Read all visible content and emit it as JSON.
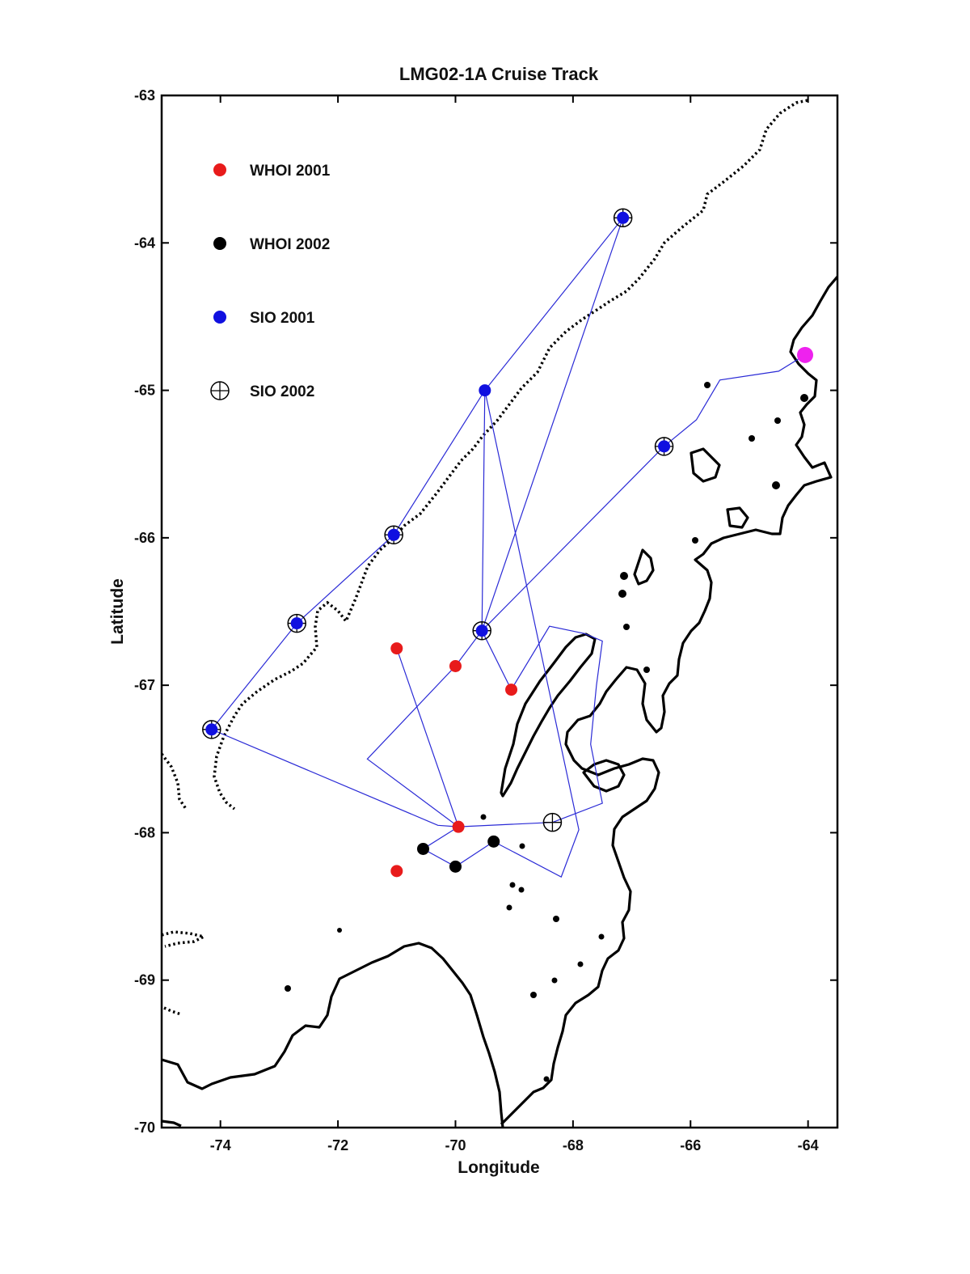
{
  "chart_data": {
    "type": "map",
    "title": "LMG02-1A Cruise Track",
    "xlabel": "Longitude",
    "ylabel": "Latitude",
    "xlim": [
      -75,
      -63.5
    ],
    "ylim": [
      -70,
      -63
    ],
    "xticks": [
      -74,
      -72,
      -70,
      -68,
      -66,
      -64
    ],
    "yticks": [
      -63,
      -64,
      -65,
      -66,
      -67,
      -68,
      -69,
      -70
    ],
    "legend": {
      "placement": "top-left",
      "entries": [
        {
          "label": "WHOI 2001",
          "marker": "dot",
          "color": "#e81b1b"
        },
        {
          "label": "WHOI 2002",
          "marker": "dot",
          "color": "#000000"
        },
        {
          "label": "SIO 2001",
          "marker": "dot",
          "color": "#1010e0"
        },
        {
          "label": "SIO 2002",
          "marker": "crosshair-circle",
          "color": "#000000"
        }
      ]
    },
    "stations": {
      "whoi_2001": [
        [
          -71.0,
          -66.75
        ],
        [
          -70.0,
          -66.87
        ],
        [
          -69.05,
          -67.03
        ],
        [
          -69.95,
          -67.96
        ],
        [
          -71.0,
          -68.26
        ]
      ],
      "whoi_2002": [
        [
          -70.55,
          -68.11
        ],
        [
          -70.0,
          -68.23
        ],
        [
          -69.35,
          -68.06
        ]
      ],
      "sio_2001": [
        [
          -67.15,
          -63.83
        ],
        [
          -69.5,
          -65.0
        ],
        [
          -71.05,
          -65.98
        ],
        [
          -72.7,
          -66.58
        ],
        [
          -74.15,
          -67.3
        ],
        [
          -66.45,
          -65.38
        ],
        [
          -69.55,
          -66.63
        ]
      ],
      "sio_2002": [
        [
          -67.15,
          -63.83
        ],
        [
          -71.05,
          -65.98
        ],
        [
          -72.7,
          -66.58
        ],
        [
          -74.15,
          -67.3
        ],
        [
          -66.45,
          -65.38
        ],
        [
          -69.55,
          -66.63
        ],
        [
          -68.35,
          -67.93
        ]
      ],
      "highlight_point": {
        "lon": -64.05,
        "lat": -64.76,
        "color": "#ee22ee"
      }
    },
    "track": [
      [
        -64.05,
        -64.76
      ],
      [
        -64.5,
        -64.87
      ],
      [
        -65.5,
        -64.93
      ],
      [
        -65.9,
        -65.2
      ],
      [
        -66.45,
        -65.38
      ],
      [
        -69.55,
        -66.63
      ],
      [
        -70.0,
        -66.87
      ],
      [
        -71.5,
        -67.5
      ],
      [
        -69.95,
        -67.96
      ],
      [
        -71.0,
        -66.75
      ],
      [
        -69.95,
        -67.96
      ],
      [
        -68.35,
        -67.93
      ],
      [
        -67.5,
        -67.8
      ],
      [
        -67.7,
        -67.4
      ],
      [
        -67.6,
        -67.0
      ],
      [
        -67.5,
        -66.7
      ],
      [
        -67.8,
        -66.65
      ],
      [
        -68.4,
        -66.6
      ],
      [
        -69.05,
        -67.03
      ],
      [
        -69.55,
        -66.63
      ],
      [
        -69.5,
        -65.0
      ],
      [
        -71.05,
        -65.98
      ],
      [
        -72.7,
        -66.58
      ],
      [
        -74.15,
        -67.3
      ],
      [
        -70.3,
        -67.95
      ],
      [
        -69.95,
        -67.96
      ],
      [
        -70.55,
        -68.11
      ],
      [
        -70.0,
        -68.23
      ],
      [
        -69.35,
        -68.06
      ],
      [
        -68.2,
        -68.3
      ],
      [
        -67.9,
        -67.98
      ],
      [
        -69.5,
        -65.0
      ],
      [
        -67.15,
        -63.83
      ],
      [
        -69.55,
        -66.63
      ]
    ]
  }
}
